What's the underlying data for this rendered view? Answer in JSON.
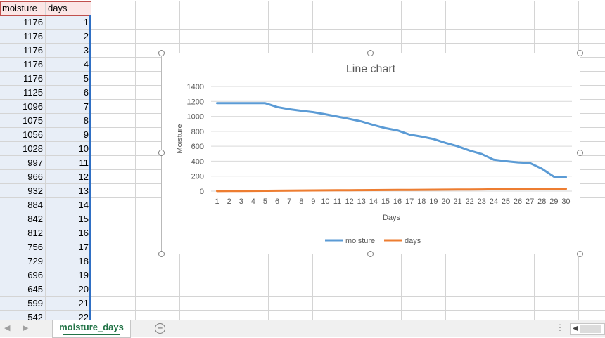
{
  "sheet": {
    "headers": [
      "moisture",
      "days"
    ],
    "rows": [
      [
        1176,
        1
      ],
      [
        1176,
        2
      ],
      [
        1176,
        3
      ],
      [
        1176,
        4
      ],
      [
        1176,
        5
      ],
      [
        1125,
        6
      ],
      [
        1096,
        7
      ],
      [
        1075,
        8
      ],
      [
        1056,
        9
      ],
      [
        1028,
        10
      ],
      [
        997,
        11
      ],
      [
        966,
        12
      ],
      [
        932,
        13
      ],
      [
        884,
        14
      ],
      [
        842,
        15
      ],
      [
        812,
        16
      ],
      [
        756,
        17
      ],
      [
        729,
        18
      ],
      [
        696,
        19
      ],
      [
        645,
        20
      ],
      [
        599,
        21
      ],
      [
        542,
        22
      ]
    ],
    "tab_name": "moisture_days",
    "add_sheet_symbol": "+",
    "nav_left": "◀",
    "nav_right": "▶",
    "scroll_left": "◀",
    "more_symbol": "⋮"
  },
  "chart_data": {
    "type": "line",
    "title": "Line chart",
    "xlabel": "Days",
    "ylabel": "Moisture",
    "categories": [
      "1",
      "2",
      "3",
      "4",
      "5",
      "6",
      "7",
      "8",
      "9",
      "10",
      "11",
      "12",
      "13",
      "14",
      "15",
      "16",
      "17",
      "18",
      "19",
      "20",
      "21",
      "22",
      "23",
      "24",
      "25",
      "26",
      "27",
      "28",
      "29",
      "30"
    ],
    "ylim": [
      0,
      1400
    ],
    "yticks": [
      "0",
      "200",
      "400",
      "600",
      "800",
      "1000",
      "1200",
      "1400"
    ],
    "grid": true,
    "legend": "bottom",
    "series": [
      {
        "name": "moisture",
        "color": "#5b9bd5",
        "values": [
          1176,
          1176,
          1176,
          1176,
          1176,
          1125,
          1096,
          1075,
          1056,
          1028,
          997,
          966,
          932,
          884,
          842,
          812,
          756,
          729,
          696,
          645,
          599,
          542,
          496,
          420,
          400,
          384,
          376,
          300,
          193,
          186
        ]
      },
      {
        "name": "days",
        "color": "#ed7d31",
        "values": [
          1,
          2,
          3,
          4,
          5,
          6,
          7,
          8,
          9,
          10,
          11,
          12,
          13,
          14,
          15,
          16,
          17,
          18,
          19,
          20,
          21,
          22,
          23,
          24,
          25,
          26,
          27,
          28,
          29,
          30
        ]
      }
    ]
  }
}
